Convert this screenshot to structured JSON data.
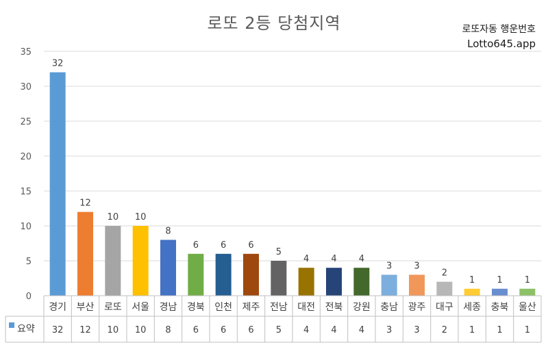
{
  "chart_data": {
    "type": "bar",
    "title": "로또 2등 당첨지역",
    "categories": [
      "경기",
      "부산",
      "로또",
      "서울",
      "경남",
      "경북",
      "인천",
      "제주",
      "전남",
      "대전",
      "전북",
      "강원",
      "충남",
      "광주",
      "대구",
      "세종",
      "충북",
      "울산"
    ],
    "values": [
      32,
      12,
      10,
      10,
      8,
      6,
      6,
      6,
      5,
      4,
      4,
      4,
      3,
      3,
      2,
      1,
      1,
      1
    ],
    "colors": [
      "#5b9bd5",
      "#ed7d31",
      "#a5a5a5",
      "#ffc000",
      "#4472c4",
      "#70ad47",
      "#255e91",
      "#9e480e",
      "#636363",
      "#997300",
      "#264478",
      "#43682b",
      "#7cafdd",
      "#f1975a",
      "#b7b7b7",
      "#ffcd33",
      "#698ed0",
      "#8cc168"
    ],
    "yticks": [
      "0",
      "5",
      "10",
      "15",
      "20",
      "25",
      "30",
      "35"
    ],
    "ylim": [
      0,
      35
    ],
    "grid": true,
    "legend": {
      "label": "요약",
      "color": "#5b9bd5"
    },
    "table_row_label": "요약"
  },
  "watermark": {
    "line1": "로또자동 행운번호",
    "line2": "Lotto645.app"
  }
}
